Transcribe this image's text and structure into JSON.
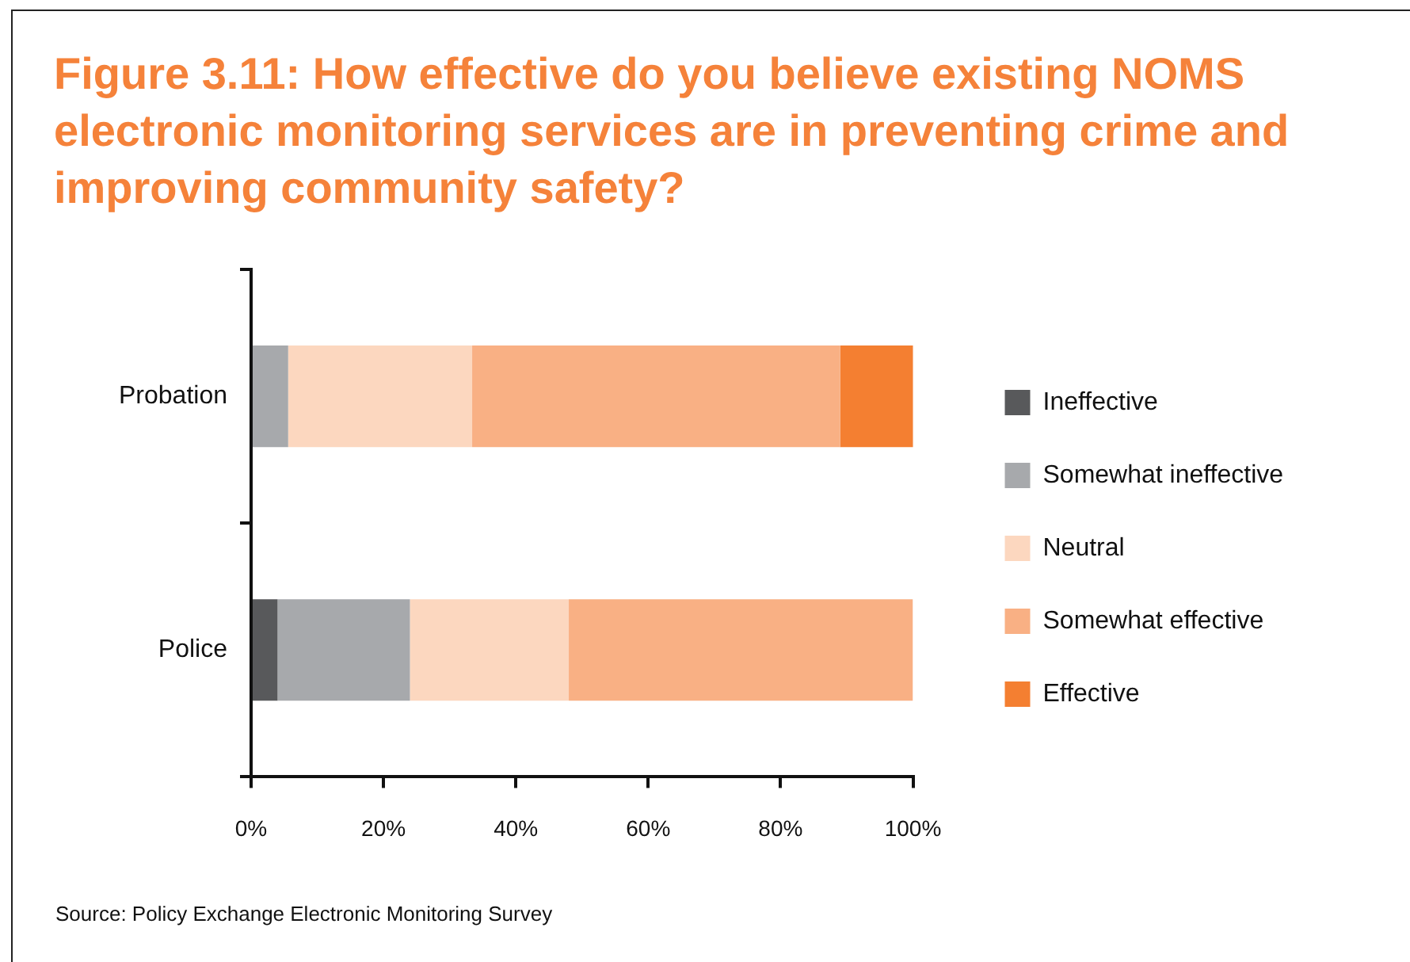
{
  "chart_data": {
    "type": "bar",
    "orientation": "horizontal",
    "stacked": true,
    "title": "Figure 3.11: How effective do you believe existing NOMS electronic monitoring services are in preventing crime and improving community safety?",
    "categories": [
      "Probation",
      "Police"
    ],
    "series": [
      {
        "name": "Ineffective",
        "color": "#58595b",
        "values": [
          0,
          4
        ]
      },
      {
        "name": "Somewhat ineffective",
        "color": "#a7a9ac",
        "values": [
          5.6,
          20
        ]
      },
      {
        "name": "Neutral",
        "color": "#fcd7bf",
        "values": [
          27.8,
          24
        ]
      },
      {
        "name": "Somewhat effective",
        "color": "#f9b084",
        "values": [
          55.6,
          52
        ]
      },
      {
        "name": "Effective",
        "color": "#f47f31",
        "values": [
          11.1,
          0
        ]
      }
    ],
    "xlim": [
      0,
      100
    ],
    "xticks": [
      {
        "value": 0,
        "label": "0%"
      },
      {
        "value": 20,
        "label": "20%"
      },
      {
        "value": 40,
        "label": "40%"
      },
      {
        "value": 60,
        "label": "60%"
      },
      {
        "value": 80,
        "label": "80%"
      },
      {
        "value": 100,
        "label": "100%"
      }
    ],
    "legend": "right",
    "annotations": [
      "Source: Policy Exchange Electronic Monitoring Survey"
    ]
  }
}
